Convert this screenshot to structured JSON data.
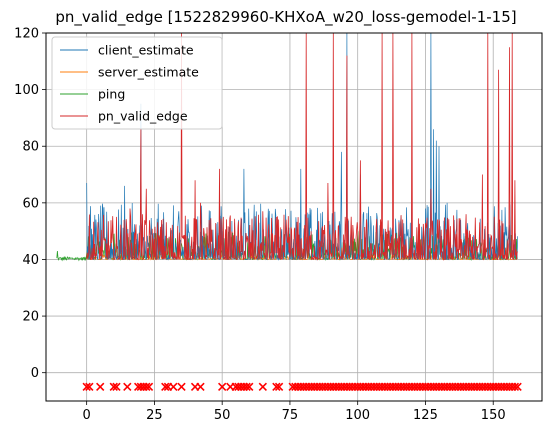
{
  "chart_data": {
    "type": "line",
    "title": "pn_valid_edge [1522829960-KHXoA_w20_loss-gemodel-1-15]",
    "xlabel": "",
    "ylabel": "",
    "xlim": [
      -15,
      168
    ],
    "ylim": [
      -10,
      120
    ],
    "xticks": [
      0,
      25,
      50,
      75,
      100,
      125,
      150
    ],
    "yticks": [
      0,
      20,
      40,
      60,
      80,
      100,
      120
    ],
    "grid": true,
    "legend_position": "top-left",
    "series": [
      {
        "name": "client_estimate",
        "color": "#1f77b4"
      },
      {
        "name": "server_estimate",
        "color": "#ff7f0e"
      },
      {
        "name": "ping",
        "color": "#2ca02c"
      },
      {
        "name": "pn_valid_edge",
        "color": "#d62728"
      }
    ],
    "markers": {
      "name": "loss",
      "color": "#ff0000",
      "y": -5,
      "x_sparse": [
        0,
        1,
        5,
        10,
        11,
        15,
        19,
        20,
        21,
        22,
        23,
        29,
        30,
        32,
        35,
        40,
        42,
        50,
        53,
        55,
        56,
        57,
        58,
        59,
        60,
        65,
        70,
        71
      ],
      "x_dense_range": [
        76,
        159
      ]
    },
    "ping_range": [
      -11,
      159
    ],
    "baseline_y": 40,
    "noise_max": [
      60,
      40,
      50
    ],
    "spikes": [
      [
        16,
        58
      ],
      [
        20,
        86
      ],
      [
        22,
        65
      ],
      [
        35,
        120
      ],
      [
        40,
        68
      ],
      [
        42,
        60
      ],
      [
        49,
        72
      ],
      [
        65,
        57
      ],
      [
        81,
        120
      ],
      [
        89,
        67
      ],
      [
        91,
        120
      ],
      [
        96,
        112
      ],
      [
        101,
        75
      ],
      [
        109,
        120
      ],
      [
        113,
        120
      ],
      [
        120,
        120
      ],
      [
        127,
        65
      ],
      [
        146,
        70
      ],
      [
        148,
        120
      ],
      [
        152,
        107
      ],
      [
        156,
        115
      ],
      [
        157,
        120
      ],
      [
        158,
        68
      ]
    ],
    "blue_spikes": [
      [
        0,
        67
      ],
      [
        14,
        66
      ],
      [
        20,
        95
      ],
      [
        34,
        57
      ],
      [
        58,
        72
      ],
      [
        79,
        72
      ],
      [
        94,
        78
      ],
      [
        96,
        120
      ],
      [
        101,
        70
      ],
      [
        120,
        67
      ],
      [
        125,
        58
      ],
      [
        127,
        120
      ],
      [
        128,
        86
      ],
      [
        129,
        82
      ],
      [
        130,
        80
      ],
      [
        133,
        60
      ]
    ]
  }
}
